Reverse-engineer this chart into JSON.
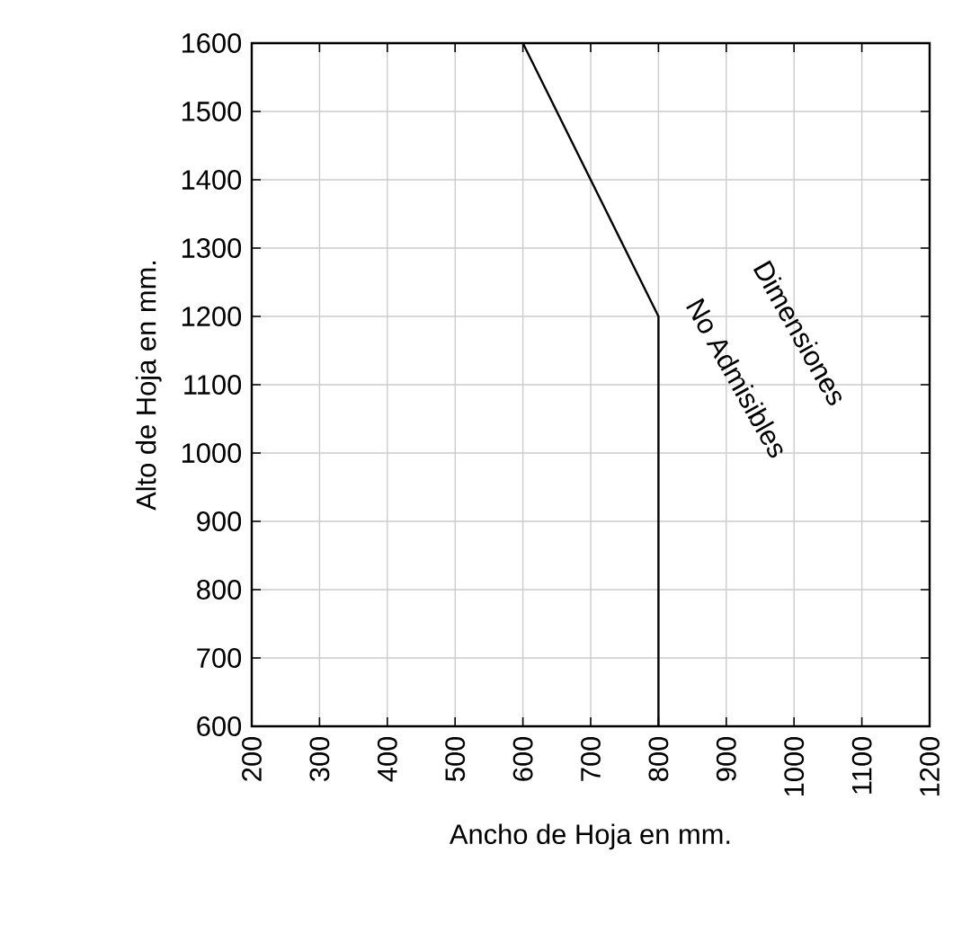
{
  "chart_data": {
    "type": "line",
    "xlabel": "Ancho de Hoja en mm.",
    "ylabel": "Alto de Hoja en mm.",
    "x": [
      600,
      700,
      800,
      800
    ],
    "series": [
      {
        "color": "#000000",
        "values": [
          1600,
          1400,
          1200,
          600
        ]
      }
    ],
    "xlim": [
      200,
      1200
    ],
    "ylim": [
      600,
      1600
    ],
    "xticks": [
      200,
      300,
      400,
      500,
      600,
      700,
      800,
      900,
      1000,
      1100,
      1200
    ],
    "yticks": [
      600,
      700,
      800,
      900,
      1000,
      1100,
      1200,
      1300,
      1400,
      1500,
      1600
    ],
    "grid": true,
    "annotations": [
      "Dimensiones",
      "No Admisibles"
    ]
  }
}
